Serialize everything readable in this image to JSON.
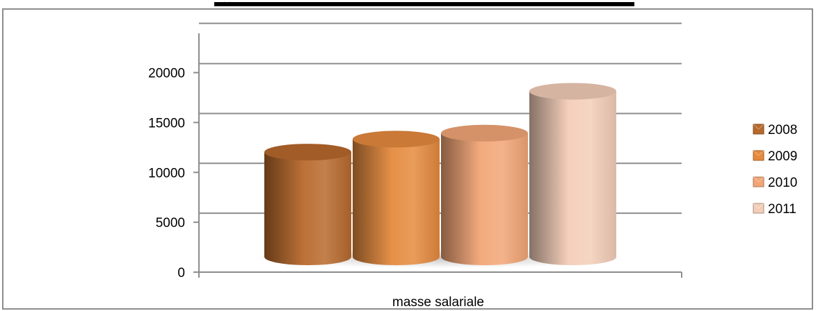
{
  "chart_data": {
    "type": "bar",
    "style": "3d-cylinder",
    "xlabel": "masse salariale",
    "categories": [
      "masse salariale"
    ],
    "series": [
      {
        "name": "2008",
        "value": 10500,
        "color": "#b8692c"
      },
      {
        "name": "2009",
        "value": 11800,
        "color": "#e58a3e"
      },
      {
        "name": "2010",
        "value": 12400,
        "color": "#f2a676"
      },
      {
        "name": "2011",
        "value": 16600,
        "color": "#f3cdb8"
      }
    ],
    "ylim": [
      0,
      20000
    ],
    "yticks": [
      0,
      5000,
      10000,
      15000,
      20000
    ],
    "ytick_labels": [
      "0",
      "5000",
      "10000",
      "15000",
      "20000"
    ],
    "grid": true,
    "legend_position": "right"
  }
}
